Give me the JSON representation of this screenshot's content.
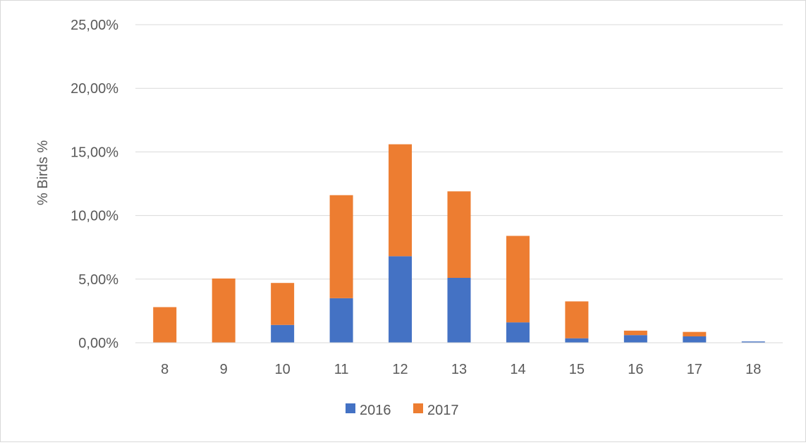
{
  "chart_data": {
    "type": "bar",
    "stacked": true,
    "title": "",
    "xlabel": "",
    "ylabel": "% Birds %",
    "ylim": [
      0,
      0.25
    ],
    "y_ticks": [
      0,
      0.05,
      0.1,
      0.15,
      0.2,
      0.25
    ],
    "y_tick_labels": [
      "0,00%",
      "5,00%",
      "10,00%",
      "15,00%",
      "20,00%",
      "25,00%"
    ],
    "grid": true,
    "legend_position": "bottom",
    "categories": [
      "8",
      "9",
      "10",
      "11",
      "12",
      "13",
      "14",
      "15",
      "16",
      "17",
      "18"
    ],
    "series": [
      {
        "name": "2016",
        "color": "#4472c4",
        "values": [
          0,
          0,
          0.014,
          0.035,
          0.068,
          0.051,
          0.016,
          0.0035,
          0.006,
          0.005,
          0.001
        ]
      },
      {
        "name": "2017",
        "color": "#ed7d31",
        "values": [
          0.028,
          0.0505,
          0.033,
          0.081,
          0.088,
          0.068,
          0.068,
          0.029,
          0.0035,
          0.0035,
          0
        ]
      }
    ]
  }
}
